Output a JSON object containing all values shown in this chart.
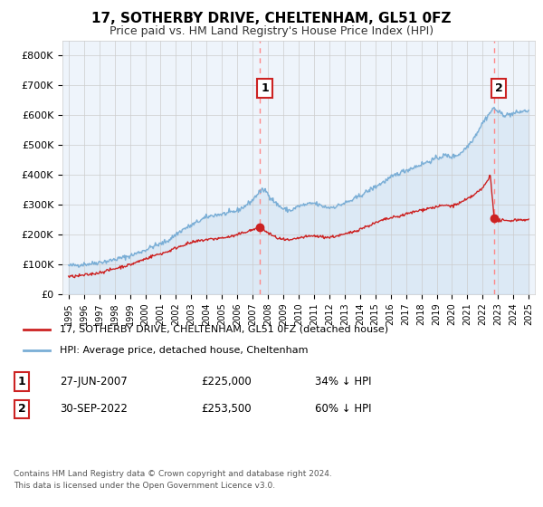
{
  "title": "17, SOTHERBY DRIVE, CHELTENHAM, GL51 0FZ",
  "subtitle": "Price paid vs. HM Land Registry's House Price Index (HPI)",
  "legend_line1": "17, SOTHERBY DRIVE, CHELTENHAM, GL51 0FZ (detached house)",
  "legend_line2": "HPI: Average price, detached house, Cheltenham",
  "footer1": "Contains HM Land Registry data © Crown copyright and database right 2024.",
  "footer2": "This data is licensed under the Open Government Licence v3.0.",
  "red_color": "#cc2222",
  "blue_color": "#7aaed6",
  "fill_color": "#ddeeff",
  "dashed_color": "#ff8888",
  "background_color": "#ffffff",
  "grid_color": "#cccccc",
  "chart_bg": "#eef4fb",
  "ylim": [
    0,
    850000
  ],
  "xlim_left": 1994.6,
  "xlim_right": 2025.4,
  "yticks": [
    0,
    100000,
    200000,
    300000,
    400000,
    500000,
    600000,
    700000,
    800000
  ],
  "ytick_labels": [
    "£0",
    "£100K",
    "£200K",
    "£300K",
    "£400K",
    "£500K",
    "£600K",
    "£700K",
    "£800K"
  ],
  "sale1_x": 2007.49,
  "sale1_y": 225000,
  "sale2_x": 2022.75,
  "sale2_y": 253500,
  "vline1_x": 2007.49,
  "vline2_x": 2022.75,
  "hpi_anchors": [
    [
      1995.0,
      95000
    ],
    [
      1995.5,
      97000
    ],
    [
      1996.0,
      100000
    ],
    [
      1996.5,
      102000
    ],
    [
      1997.0,
      107000
    ],
    [
      1997.5,
      110000
    ],
    [
      1998.0,
      116000
    ],
    [
      1998.5,
      122000
    ],
    [
      1999.0,
      128000
    ],
    [
      1999.5,
      138000
    ],
    [
      2000.0,
      148000
    ],
    [
      2000.5,
      160000
    ],
    [
      2001.0,
      168000
    ],
    [
      2001.5,
      180000
    ],
    [
      2002.0,
      200000
    ],
    [
      2002.5,
      218000
    ],
    [
      2003.0,
      230000
    ],
    [
      2003.5,
      245000
    ],
    [
      2004.0,
      258000
    ],
    [
      2004.5,
      265000
    ],
    [
      2005.0,
      268000
    ],
    [
      2005.5,
      272000
    ],
    [
      2006.0,
      280000
    ],
    [
      2006.5,
      295000
    ],
    [
      2007.0,
      315000
    ],
    [
      2007.3,
      335000
    ],
    [
      2007.5,
      345000
    ],
    [
      2007.8,
      350000
    ],
    [
      2008.0,
      335000
    ],
    [
      2008.5,
      305000
    ],
    [
      2009.0,
      285000
    ],
    [
      2009.5,
      280000
    ],
    [
      2010.0,
      295000
    ],
    [
      2010.5,
      300000
    ],
    [
      2011.0,
      305000
    ],
    [
      2011.5,
      295000
    ],
    [
      2012.0,
      290000
    ],
    [
      2012.5,
      295000
    ],
    [
      2013.0,
      305000
    ],
    [
      2013.5,
      315000
    ],
    [
      2014.0,
      330000
    ],
    [
      2014.5,
      345000
    ],
    [
      2015.0,
      360000
    ],
    [
      2015.5,
      375000
    ],
    [
      2016.0,
      390000
    ],
    [
      2016.5,
      405000
    ],
    [
      2017.0,
      415000
    ],
    [
      2017.5,
      425000
    ],
    [
      2018.0,
      435000
    ],
    [
      2018.5,
      445000
    ],
    [
      2019.0,
      455000
    ],
    [
      2019.5,
      465000
    ],
    [
      2020.0,
      460000
    ],
    [
      2020.5,
      470000
    ],
    [
      2021.0,
      495000
    ],
    [
      2021.5,
      530000
    ],
    [
      2022.0,
      575000
    ],
    [
      2022.5,
      610000
    ],
    [
      2022.75,
      625000
    ],
    [
      2023.0,
      610000
    ],
    [
      2023.5,
      600000
    ],
    [
      2024.0,
      605000
    ],
    [
      2024.5,
      612000
    ],
    [
      2025.0,
      615000
    ]
  ],
  "pp_anchors": [
    [
      1995.0,
      58000
    ],
    [
      1995.5,
      60000
    ],
    [
      1996.0,
      63000
    ],
    [
      1996.5,
      67000
    ],
    [
      1997.0,
      72000
    ],
    [
      1997.5,
      78000
    ],
    [
      1998.0,
      85000
    ],
    [
      1998.5,
      92000
    ],
    [
      1999.0,
      98000
    ],
    [
      1999.5,
      108000
    ],
    [
      2000.0,
      118000
    ],
    [
      2000.5,
      128000
    ],
    [
      2001.0,
      135000
    ],
    [
      2001.5,
      143000
    ],
    [
      2002.0,
      155000
    ],
    [
      2002.5,
      165000
    ],
    [
      2003.0,
      172000
    ],
    [
      2003.5,
      178000
    ],
    [
      2004.0,
      183000
    ],
    [
      2004.5,
      185000
    ],
    [
      2005.0,
      188000
    ],
    [
      2005.5,
      192000
    ],
    [
      2006.0,
      198000
    ],
    [
      2006.5,
      208000
    ],
    [
      2007.0,
      215000
    ],
    [
      2007.3,
      222000
    ],
    [
      2007.49,
      225000
    ],
    [
      2007.6,
      220000
    ],
    [
      2008.0,
      205000
    ],
    [
      2008.5,
      190000
    ],
    [
      2009.0,
      182000
    ],
    [
      2009.5,
      180000
    ],
    [
      2010.0,
      188000
    ],
    [
      2010.5,
      192000
    ],
    [
      2011.0,
      195000
    ],
    [
      2011.5,
      192000
    ],
    [
      2012.0,
      190000
    ],
    [
      2012.5,
      195000
    ],
    [
      2013.0,
      200000
    ],
    [
      2013.5,
      208000
    ],
    [
      2014.0,
      218000
    ],
    [
      2014.5,
      228000
    ],
    [
      2015.0,
      238000
    ],
    [
      2015.5,
      248000
    ],
    [
      2016.0,
      255000
    ],
    [
      2016.5,
      260000
    ],
    [
      2017.0,
      268000
    ],
    [
      2017.5,
      275000
    ],
    [
      2018.0,
      282000
    ],
    [
      2018.5,
      288000
    ],
    [
      2019.0,
      292000
    ],
    [
      2019.5,
      298000
    ],
    [
      2020.0,
      295000
    ],
    [
      2020.5,
      305000
    ],
    [
      2021.0,
      318000
    ],
    [
      2021.5,
      335000
    ],
    [
      2022.0,
      355000
    ],
    [
      2022.3,
      380000
    ],
    [
      2022.5,
      400000
    ],
    [
      2022.75,
      253500
    ],
    [
      2023.0,
      248000
    ],
    [
      2023.5,
      245000
    ],
    [
      2024.0,
      248000
    ],
    [
      2024.5,
      250000
    ],
    [
      2025.0,
      248000
    ]
  ]
}
